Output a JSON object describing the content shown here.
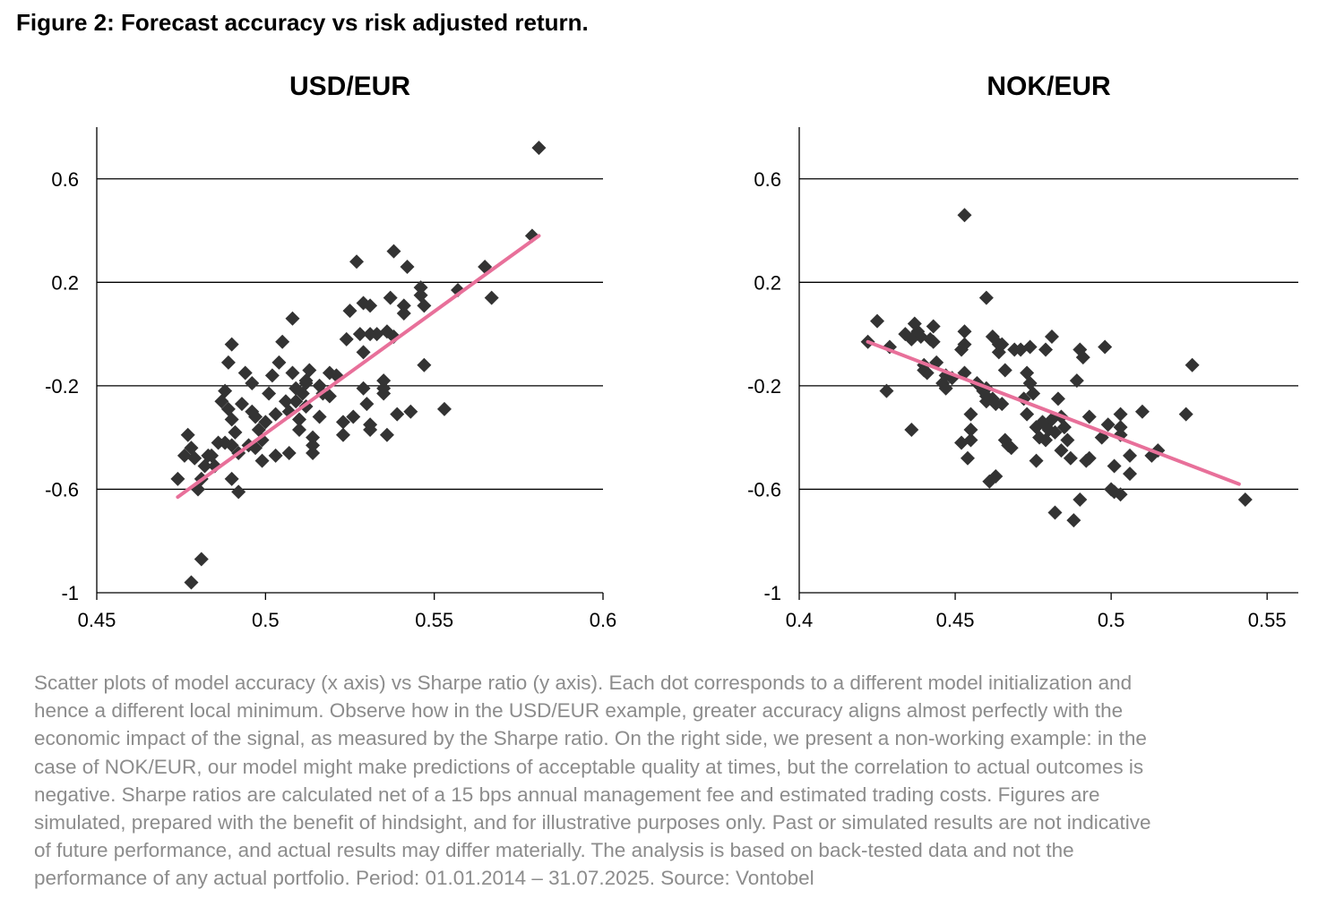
{
  "figure": {
    "title": "Figure 2: Forecast accuracy vs risk adjusted return.",
    "caption_lines": [
      "Scatter plots of model accuracy (x axis) vs Sharpe ratio (y axis). Each dot corresponds to a different model initialization and",
      "hence a different local minimum. Observe how in the USD/EUR example, greater accuracy aligns almost perfectly with the",
      "economic impact of the signal, as measured by the Sharpe ratio. On the right side, we present a non-working example: in the",
      "case of NOK/EUR, our model might make predictions of acceptable quality at times, but the correlation to actual outcomes is",
      "negative. Sharpe ratios are calculated net of a 15 bps annual management fee and estimated trading costs. Figures are",
      "simulated, prepared with the benefit of hindsight, and for illustrative purposes only. Past or simulated results are not indicative",
      "of future performance, and actual results may differ materially. The analysis is based on back-tested data and not the",
      "performance of any actual portfolio. Period: 01.01.2014 – 31.07.2025. Source: Vontobel"
    ]
  },
  "chart_data": [
    {
      "type": "scatter",
      "title": "USD/EUR",
      "xlabel": "",
      "ylabel": "",
      "xlim": [
        0.45,
        0.6
      ],
      "ylim": [
        -1,
        0.8
      ],
      "xticks": [
        0.45,
        0.5,
        0.55,
        0.6
      ],
      "xtick_labels": [
        "0.45",
        "0.5",
        "0.55",
        "0.6"
      ],
      "yticks": [
        -1,
        -0.6,
        -0.2,
        0.2,
        0.6
      ],
      "ytick_labels": [
        "-1",
        "-0.6",
        "-0.2",
        "0.2",
        "0.6"
      ],
      "grid": "horizontal",
      "marker_color": "#333333",
      "trend_color": "#e8709a",
      "trend_line": [
        [
          0.474,
          -0.63
        ],
        [
          0.581,
          0.38
        ]
      ],
      "points": [
        [
          0.581,
          0.72
        ],
        [
          0.579,
          0.38
        ],
        [
          0.567,
          0.14
        ],
        [
          0.565,
          0.26
        ],
        [
          0.557,
          0.17
        ],
        [
          0.553,
          -0.29
        ],
        [
          0.547,
          -0.12
        ],
        [
          0.547,
          0.11
        ],
        [
          0.546,
          0.15
        ],
        [
          0.546,
          0.18
        ],
        [
          0.543,
          -0.3
        ],
        [
          0.542,
          0.26
        ],
        [
          0.541,
          0.08
        ],
        [
          0.541,
          0.11
        ],
        [
          0.539,
          -0.31
        ],
        [
          0.538,
          0.32
        ],
        [
          0.537,
          0.14
        ],
        [
          0.538,
          -0.01
        ],
        [
          0.536,
          0.01
        ],
        [
          0.536,
          -0.39
        ],
        [
          0.535,
          -0.18
        ],
        [
          0.535,
          -0.21
        ],
        [
          0.535,
          -0.23
        ],
        [
          0.533,
          0.0
        ],
        [
          0.531,
          0.0
        ],
        [
          0.531,
          -0.37
        ],
        [
          0.531,
          -0.35
        ],
        [
          0.531,
          0.11
        ],
        [
          0.53,
          -0.27
        ],
        [
          0.529,
          0.12
        ],
        [
          0.529,
          -0.21
        ],
        [
          0.529,
          -0.07
        ],
        [
          0.528,
          0.0
        ],
        [
          0.527,
          0.28
        ],
        [
          0.526,
          -0.32
        ],
        [
          0.525,
          0.09
        ],
        [
          0.524,
          -0.02
        ],
        [
          0.523,
          -0.39
        ],
        [
          0.523,
          -0.34
        ],
        [
          0.521,
          -0.16
        ],
        [
          0.519,
          -0.15
        ],
        [
          0.519,
          -0.24
        ],
        [
          0.517,
          -0.23
        ],
        [
          0.516,
          -0.32
        ],
        [
          0.516,
          -0.2
        ],
        [
          0.514,
          -0.46
        ],
        [
          0.514,
          -0.43
        ],
        [
          0.514,
          -0.4
        ],
        [
          0.513,
          -0.14
        ],
        [
          0.512,
          -0.18
        ],
        [
          0.512,
          -0.19
        ],
        [
          0.512,
          -0.28
        ],
        [
          0.511,
          -0.23
        ],
        [
          0.51,
          -0.37
        ],
        [
          0.51,
          -0.33
        ],
        [
          0.509,
          -0.26
        ],
        [
          0.509,
          -0.21
        ],
        [
          0.508,
          -0.15
        ],
        [
          0.508,
          0.06
        ],
        [
          0.507,
          -0.46
        ],
        [
          0.507,
          -0.3
        ],
        [
          0.506,
          -0.26
        ],
        [
          0.505,
          -0.03
        ],
        [
          0.504,
          -0.11
        ],
        [
          0.503,
          -0.47
        ],
        [
          0.503,
          -0.31
        ],
        [
          0.502,
          -0.16
        ],
        [
          0.501,
          -0.23
        ],
        [
          0.5,
          -0.34
        ],
        [
          0.499,
          -0.49
        ],
        [
          0.499,
          -0.41
        ],
        [
          0.498,
          -0.37
        ],
        [
          0.497,
          -0.44
        ],
        [
          0.497,
          -0.32
        ],
        [
          0.496,
          -0.3
        ],
        [
          0.496,
          -0.19
        ],
        [
          0.495,
          -0.43
        ],
        [
          0.494,
          -0.15
        ],
        [
          0.493,
          -0.27
        ],
        [
          0.492,
          -0.46
        ],
        [
          0.491,
          -0.38
        ],
        [
          0.49,
          -0.33
        ],
        [
          0.49,
          -0.43
        ],
        [
          0.489,
          -0.29
        ],
        [
          0.488,
          -0.22
        ],
        [
          0.487,
          -0.26
        ],
        [
          0.486,
          -0.42
        ],
        [
          0.485,
          -0.51
        ],
        [
          0.484,
          -0.47
        ],
        [
          0.483,
          -0.47
        ],
        [
          0.482,
          -0.51
        ],
        [
          0.481,
          -0.56
        ],
        [
          0.48,
          -0.6
        ],
        [
          0.479,
          -0.48
        ],
        [
          0.478,
          -0.44
        ],
        [
          0.477,
          -0.39
        ],
        [
          0.476,
          -0.47
        ],
        [
          0.49,
          -0.04
        ],
        [
          0.489,
          -0.11
        ],
        [
          0.492,
          -0.61
        ],
        [
          0.49,
          -0.56
        ],
        [
          0.488,
          -0.42
        ],
        [
          0.474,
          -0.56
        ],
        [
          0.481,
          -0.87
        ],
        [
          0.478,
          -0.96
        ]
      ]
    },
    {
      "type": "scatter",
      "title": "NOK/EUR",
      "xlabel": "",
      "ylabel": "",
      "xlim": [
        0.4,
        0.56
      ],
      "ylim": [
        -1,
        0.8
      ],
      "xticks": [
        0.4,
        0.45,
        0.5,
        0.55
      ],
      "xtick_labels": [
        "0.4",
        "0.45",
        "0.5",
        "0.55"
      ],
      "yticks": [
        -1,
        -0.6,
        -0.2,
        0.2,
        0.6
      ],
      "ytick_labels": [
        "-1",
        "-0.6",
        "-0.2",
        "0.2",
        "0.6"
      ],
      "grid": "horizontal",
      "marker_color": "#333333",
      "trend_color": "#e8709a",
      "trend_line": [
        [
          0.422,
          -0.03
        ],
        [
          0.541,
          -0.58
        ]
      ],
      "points": [
        [
          0.453,
          0.46
        ],
        [
          0.46,
          0.14
        ],
        [
          0.526,
          -0.12
        ],
        [
          0.543,
          -0.64
        ],
        [
          0.524,
          -0.31
        ],
        [
          0.515,
          -0.45
        ],
        [
          0.513,
          -0.47
        ],
        [
          0.51,
          -0.3
        ],
        [
          0.506,
          -0.47
        ],
        [
          0.506,
          -0.54
        ],
        [
          0.503,
          -0.31
        ],
        [
          0.503,
          -0.36
        ],
        [
          0.503,
          -0.39
        ],
        [
          0.503,
          -0.62
        ],
        [
          0.501,
          -0.61
        ],
        [
          0.501,
          -0.51
        ],
        [
          0.5,
          -0.6
        ],
        [
          0.499,
          -0.35
        ],
        [
          0.498,
          -0.05
        ],
        [
          0.497,
          -0.4
        ],
        [
          0.493,
          -0.32
        ],
        [
          0.493,
          -0.48
        ],
        [
          0.492,
          -0.49
        ],
        [
          0.491,
          -0.09
        ],
        [
          0.49,
          -0.06
        ],
        [
          0.49,
          -0.64
        ],
        [
          0.489,
          -0.18
        ],
        [
          0.488,
          -0.72
        ],
        [
          0.487,
          -0.48
        ],
        [
          0.486,
          -0.41
        ],
        [
          0.485,
          -0.36
        ],
        [
          0.484,
          -0.45
        ],
        [
          0.484,
          -0.32
        ],
        [
          0.483,
          -0.25
        ],
        [
          0.482,
          -0.69
        ],
        [
          0.482,
          -0.38
        ],
        [
          0.481,
          -0.33
        ],
        [
          0.481,
          -0.01
        ],
        [
          0.48,
          -0.37
        ],
        [
          0.479,
          -0.41
        ],
        [
          0.479,
          -0.06
        ],
        [
          0.478,
          -0.34
        ],
        [
          0.477,
          -0.4
        ],
        [
          0.476,
          -0.49
        ],
        [
          0.476,
          -0.36
        ],
        [
          0.475,
          -0.23
        ],
        [
          0.474,
          -0.19
        ],
        [
          0.474,
          -0.05
        ],
        [
          0.473,
          -0.15
        ],
        [
          0.473,
          -0.31
        ],
        [
          0.472,
          -0.25
        ],
        [
          0.471,
          -0.06
        ],
        [
          0.469,
          -0.06
        ],
        [
          0.468,
          -0.44
        ],
        [
          0.467,
          -0.43
        ],
        [
          0.466,
          -0.41
        ],
        [
          0.466,
          -0.14
        ],
        [
          0.465,
          -0.27
        ],
        [
          0.465,
          -0.04
        ],
        [
          0.464,
          -0.04
        ],
        [
          0.464,
          -0.07
        ],
        [
          0.463,
          -0.27
        ],
        [
          0.463,
          -0.55
        ],
        [
          0.462,
          -0.01
        ],
        [
          0.462,
          -0.25
        ],
        [
          0.461,
          -0.57
        ],
        [
          0.46,
          -0.24
        ],
        [
          0.46,
          -0.26
        ],
        [
          0.46,
          -0.21
        ],
        [
          0.459,
          -0.22
        ],
        [
          0.457,
          -0.19
        ],
        [
          0.455,
          -0.41
        ],
        [
          0.455,
          -0.31
        ],
        [
          0.455,
          -0.37
        ],
        [
          0.454,
          -0.48
        ],
        [
          0.453,
          -0.04
        ],
        [
          0.453,
          -0.15
        ],
        [
          0.453,
          0.01
        ],
        [
          0.452,
          -0.06
        ],
        [
          0.452,
          -0.42
        ],
        [
          0.449,
          -0.17
        ],
        [
          0.447,
          -0.16
        ],
        [
          0.447,
          -0.21
        ],
        [
          0.446,
          -0.19
        ],
        [
          0.444,
          -0.11
        ],
        [
          0.443,
          0.03
        ],
        [
          0.443,
          -0.03
        ],
        [
          0.442,
          -0.02
        ],
        [
          0.441,
          -0.15
        ],
        [
          0.44,
          -0.14
        ],
        [
          0.44,
          -0.12
        ],
        [
          0.439,
          -0.01
        ],
        [
          0.438,
          0.01
        ],
        [
          0.437,
          0.04
        ],
        [
          0.436,
          -0.37
        ],
        [
          0.436,
          -0.02
        ],
        [
          0.434,
          0.0
        ],
        [
          0.429,
          -0.05
        ],
        [
          0.428,
          -0.22
        ],
        [
          0.425,
          0.05
        ],
        [
          0.422,
          -0.03
        ]
      ]
    }
  ]
}
